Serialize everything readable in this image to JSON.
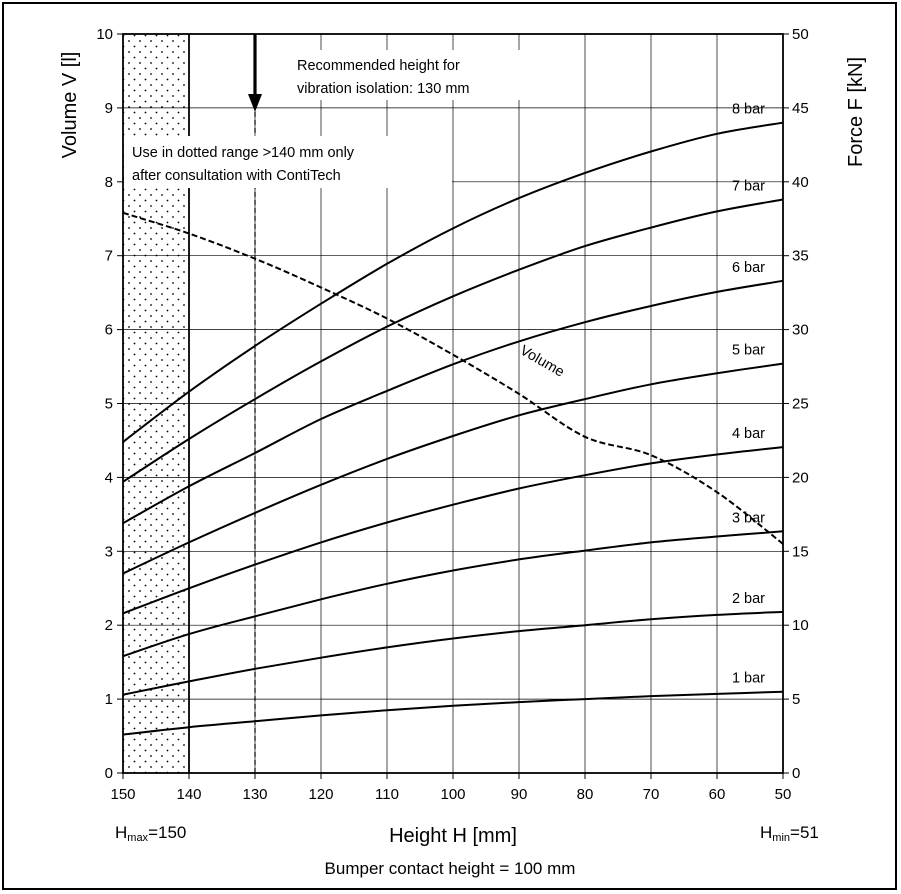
{
  "chart_data": {
    "type": "line",
    "xlabel": "Height H [mm]",
    "ylabel_left": "Volume V [l]",
    "ylabel_right": "Force F [kN]",
    "x_ticks": [
      "150",
      "140",
      "130",
      "120",
      "110",
      "100",
      "90",
      "80",
      "70",
      "60",
      "50"
    ],
    "y_left_ticks": [
      "0",
      "1",
      "2",
      "3",
      "4",
      "5",
      "6",
      "7",
      "8",
      "9",
      "10"
    ],
    "y_right_ticks": [
      "0",
      "5",
      "10",
      "15",
      "20",
      "25",
      "30",
      "35",
      "40",
      "45",
      "50"
    ],
    "xlim": [
      150,
      50
    ],
    "ylim_left": [
      0,
      10
    ],
    "ylim_right": [
      0,
      50
    ],
    "x_reversed": true,
    "grid": true,
    "h_max": {
      "label": "H",
      "sub": "max",
      "value": "=150"
    },
    "h_min": {
      "label": "H",
      "sub": "min",
      "value": "=51"
    },
    "bumper_note": "Bumper contact height = 100 mm",
    "recommended_note": [
      "Recommended height for",
      "vibration isolation: 130 mm"
    ],
    "recommended_height": 130,
    "dotted_note": [
      "Use in dotted range >140 mm only",
      "after consultation with ContiTech"
    ],
    "dotted_range": [
      150,
      140
    ],
    "x": [
      150,
      140,
      130,
      120,
      110,
      100,
      90,
      80,
      70,
      60,
      50
    ],
    "series": [
      {
        "name": "1 bar",
        "axis": "force",
        "values": [
          2.6,
          3.1,
          3.5,
          3.9,
          4.25,
          4.55,
          4.8,
          5.0,
          5.2,
          5.35,
          5.5
        ]
      },
      {
        "name": "2 bar",
        "axis": "force",
        "values": [
          5.3,
          6.2,
          7.05,
          7.8,
          8.5,
          9.1,
          9.6,
          10.0,
          10.4,
          10.7,
          10.9
        ]
      },
      {
        "name": "3 bar",
        "axis": "force",
        "values": [
          7.9,
          9.4,
          10.6,
          11.75,
          12.8,
          13.7,
          14.45,
          15.05,
          15.6,
          16.0,
          16.35
        ]
      },
      {
        "name": "4 bar",
        "axis": "force",
        "values": [
          10.8,
          12.5,
          14.1,
          15.6,
          16.95,
          18.15,
          19.25,
          20.15,
          20.95,
          21.55,
          22.05
        ]
      },
      {
        "name": "5 bar",
        "axis": "force",
        "values": [
          13.5,
          15.6,
          17.6,
          19.5,
          21.25,
          22.8,
          24.2,
          25.3,
          26.3,
          27.05,
          27.7
        ]
      },
      {
        "name": "6 bar",
        "axis": "force",
        "values": [
          16.9,
          19.4,
          21.65,
          23.95,
          25.85,
          27.65,
          29.2,
          30.5,
          31.6,
          32.55,
          33.3
        ]
      },
      {
        "name": "7 bar",
        "axis": "force",
        "values": [
          19.7,
          22.6,
          25.3,
          27.85,
          30.2,
          32.25,
          34.05,
          35.65,
          36.9,
          38.0,
          38.8
        ]
      },
      {
        "name": "8 bar",
        "axis": "force",
        "values": [
          22.4,
          25.8,
          28.9,
          31.75,
          34.45,
          36.85,
          38.9,
          40.6,
          42.05,
          43.25,
          44.0
        ]
      },
      {
        "name": "Volume",
        "axis": "volume",
        "dashed": true,
        "values": [
          7.58,
          7.3,
          6.96,
          6.57,
          6.15,
          5.66,
          5.13,
          4.55,
          4.3,
          3.8,
          3.1
        ]
      }
    ]
  }
}
